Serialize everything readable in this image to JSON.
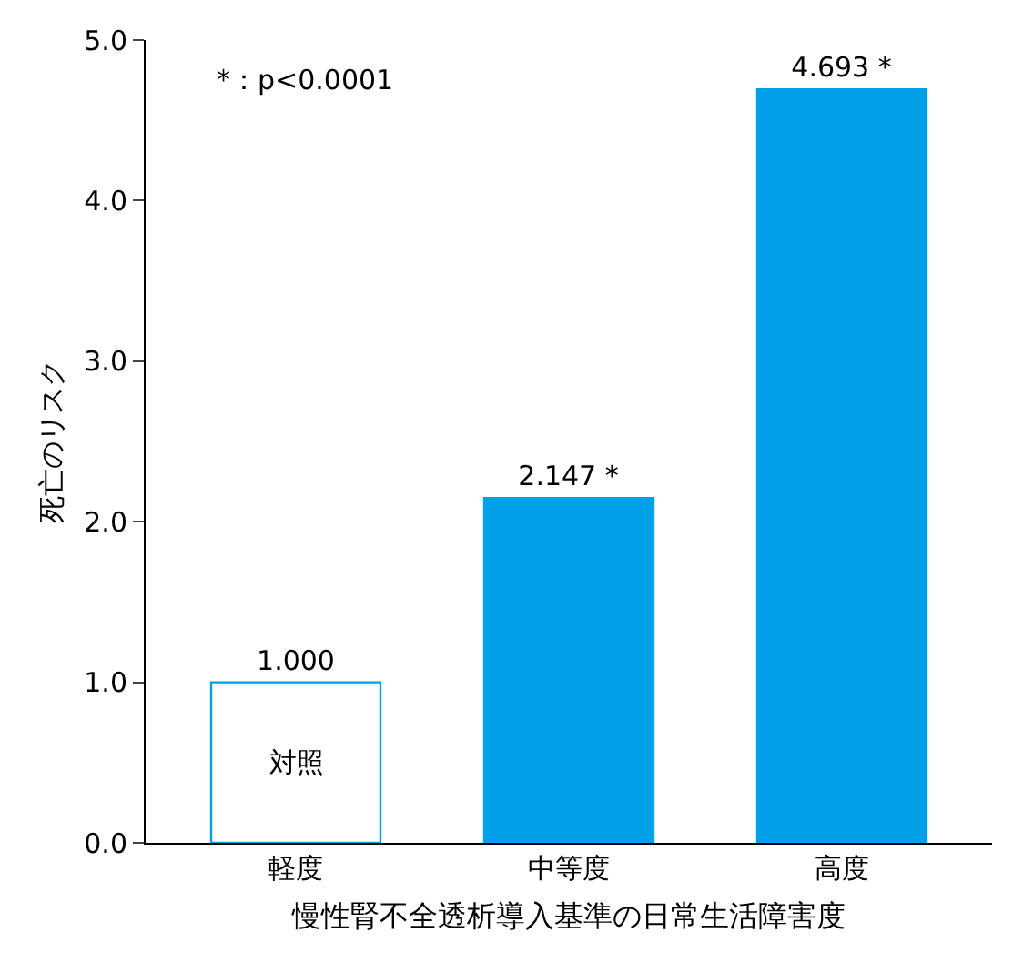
{
  "chart_data": {
    "type": "bar",
    "categories": [
      "軽度",
      "中等度",
      "高度"
    ],
    "values": [
      1.0,
      2.147,
      4.693
    ],
    "value_labels": [
      "1.000",
      "2.147 *",
      "4.693 *"
    ],
    "color": "#00a0e9",
    "colors": [
      "#ffffff",
      "#00a0e9",
      "#00a0e9"
    ],
    "xlabel": "慢性腎不全透析導入基準の日常生活障害度",
    "ylabel": "死亡のリスク",
    "ylim": [
      0,
      5
    ],
    "yticks": [
      {
        "value": 0,
        "label": "0.0"
      },
      {
        "value": 1,
        "label": "1.0"
      },
      {
        "value": 2,
        "label": "2.0"
      },
      {
        "value": 3,
        "label": "3.0"
      },
      {
        "value": 4,
        "label": "4.0"
      },
      {
        "value": 5,
        "label": "5.0"
      }
    ],
    "grid": false,
    "annotations": [
      "*：p<0.0001",
      "対照"
    ]
  }
}
